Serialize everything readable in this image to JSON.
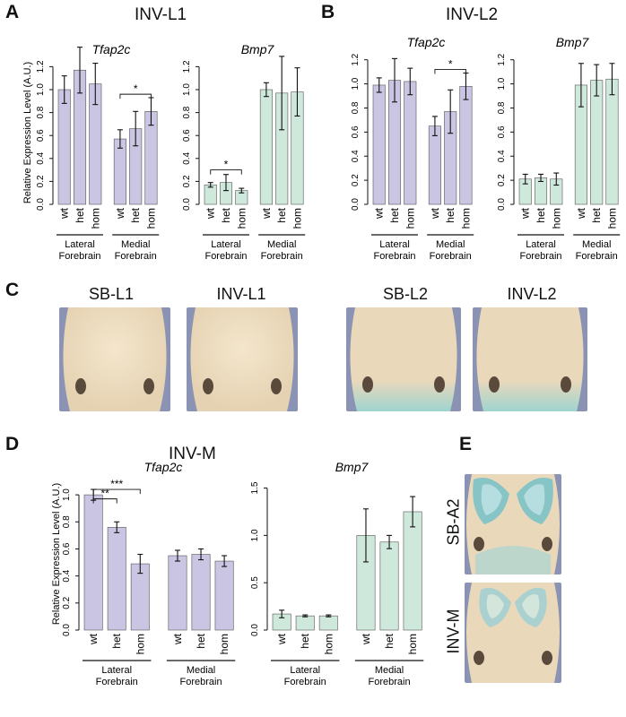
{
  "colors": {
    "tfap2c": "#c9c5e2",
    "bmp7": "#cfe8dc",
    "axis": "#111111",
    "embryo_bg": "#8d95b4"
  },
  "panels": {
    "A": {
      "letter": "A",
      "title": "INV-L1"
    },
    "B": {
      "letter": "B",
      "title": "INV-L2"
    },
    "C": {
      "letter": "C",
      "titles": [
        "SB-L1",
        "INV-L1",
        "SB-L2",
        "INV-L2"
      ]
    },
    "D": {
      "letter": "D",
      "title": "INV-M"
    },
    "E": {
      "letter": "E",
      "titles": [
        "SB-A2",
        "INV-M"
      ]
    }
  },
  "ylabel": "Relative Expression Level (A.U.)",
  "genotypes": [
    "wt",
    "het",
    "hom"
  ],
  "groups": [
    {
      "line1": "Lateral",
      "line2": "Forebrain"
    },
    {
      "line1": "Medial",
      "line2": "Forebrain"
    }
  ],
  "chart_data": [
    {
      "id": "A-tfap2c",
      "type": "bar",
      "title": "Tfap2c",
      "color": "tfap2c",
      "yticks": [
        "0.0",
        "0.2",
        "0.4",
        "0.6",
        "0.8",
        "1.0",
        "1.2"
      ],
      "ylim": [
        0,
        1.25
      ],
      "categories": [
        "wt",
        "het",
        "hom",
        "wt",
        "het",
        "hom"
      ],
      "values": [
        1.0,
        1.17,
        1.05,
        0.57,
        0.66,
        0.81
      ],
      "errors": [
        0.12,
        0.2,
        0.18,
        0.08,
        0.15,
        0.12
      ],
      "sig": [
        {
          "from": 3,
          "to": 5,
          "label": "*",
          "level": 0.96
        }
      ]
    },
    {
      "id": "A-bmp7",
      "type": "bar",
      "title": "Bmp7",
      "color": "bmp7",
      "yticks": [
        "0.0",
        "0.2",
        "0.4",
        "0.6",
        "0.8",
        "1.0",
        "1.2"
      ],
      "ylim": [
        0,
        1.25
      ],
      "categories": [
        "wt",
        "het",
        "hom",
        "wt",
        "het",
        "hom"
      ],
      "values": [
        0.17,
        0.19,
        0.12,
        1.0,
        0.97,
        0.98
      ],
      "errors": [
        0.02,
        0.07,
        0.02,
        0.06,
        0.32,
        0.21
      ],
      "sig": [
        {
          "from": 0,
          "to": 2,
          "label": "*",
          "level": 0.3
        }
      ]
    },
    {
      "id": "B-tfap2c",
      "type": "bar",
      "title": "Tfap2c",
      "color": "tfap2c",
      "yticks": [
        "0.0",
        "0.2",
        "0.4",
        "0.6",
        "0.8",
        "1.0",
        "1.2"
      ],
      "ylim": [
        0,
        1.25
      ],
      "categories": [
        "wt",
        "het",
        "hom",
        "wt",
        "het",
        "hom"
      ],
      "values": [
        0.99,
        1.03,
        1.02,
        0.65,
        0.77,
        0.98
      ],
      "errors": [
        0.06,
        0.18,
        0.11,
        0.08,
        0.18,
        0.11
      ],
      "sig": [
        {
          "from": 3,
          "to": 5,
          "label": "*",
          "level": 1.12
        }
      ]
    },
    {
      "id": "B-bmp7",
      "type": "bar",
      "title": "Bmp7",
      "color": "bmp7",
      "yticks": [
        "0.0",
        "0.2",
        "0.4",
        "0.6",
        "0.8",
        "1.0",
        "1.2"
      ],
      "ylim": [
        0,
        1.25
      ],
      "categories": [
        "wt",
        "het",
        "hom",
        "wt",
        "het",
        "hom"
      ],
      "values": [
        0.21,
        0.22,
        0.21,
        0.99,
        1.03,
        1.04
      ],
      "errors": [
        0.04,
        0.03,
        0.05,
        0.18,
        0.13,
        0.13
      ],
      "sig": []
    },
    {
      "id": "D-tfap2c",
      "type": "bar",
      "title": "Tfap2c",
      "color": "tfap2c",
      "yticks": [
        "0.0",
        "0.2",
        "0.4",
        "0.6",
        "0.8",
        "1.0"
      ],
      "ylim": [
        0,
        1.12
      ],
      "categories": [
        "wt",
        "het",
        "hom",
        "wt",
        "het",
        "hom"
      ],
      "values": [
        1.0,
        0.76,
        0.49,
        0.55,
        0.56,
        0.51
      ],
      "errors": [
        0.04,
        0.04,
        0.07,
        0.04,
        0.04,
        0.04
      ],
      "sig": [
        {
          "from": 0,
          "to": 1,
          "label": "**",
          "level": 0.97
        },
        {
          "from": 0,
          "to": 2,
          "label": "***",
          "level": 1.04
        }
      ]
    },
    {
      "id": "D-bmp7",
      "type": "bar",
      "title": "Bmp7",
      "color": "bmp7",
      "yticks": [
        "0.0",
        "0.5",
        "1.0",
        "1.5"
      ],
      "ylim": [
        0,
        1.6
      ],
      "categories": [
        "wt",
        "het",
        "hom",
        "wt",
        "het",
        "hom"
      ],
      "values": [
        0.17,
        0.15,
        0.15,
        1.0,
        0.93,
        1.25
      ],
      "errors": [
        0.04,
        0.01,
        0.01,
        0.28,
        0.07,
        0.16
      ],
      "sig": []
    }
  ]
}
